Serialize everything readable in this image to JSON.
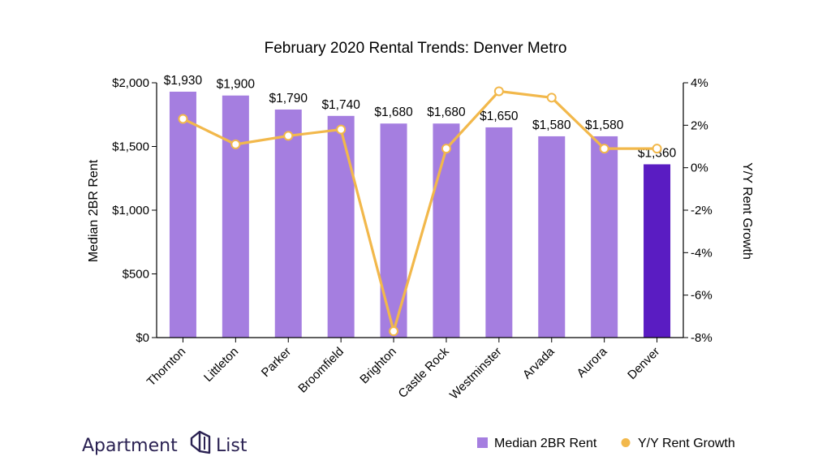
{
  "chart_data": {
    "type": "bar",
    "title": "February 2020 Rental Trends: Denver Metro",
    "categories": [
      "Thornton",
      "Littleton",
      "Parker",
      "Broomfield",
      "Brighton",
      "Castle Rock",
      "Westminster",
      "Arvada",
      "Aurora",
      "Denver"
    ],
    "series": [
      {
        "name": "Median 2BR Rent",
        "type": "bar",
        "axis": "left",
        "values": [
          1930,
          1900,
          1790,
          1740,
          1680,
          1680,
          1650,
          1580,
          1580,
          1360
        ],
        "labels": [
          "$1,930",
          "$1,900",
          "$1,790",
          "$1,740",
          "$1,680",
          "$1,680",
          "$1,650",
          "$1,580",
          "$1,580",
          "$1,360"
        ],
        "color": "#a57ee0",
        "highlight_color": "#5a1cc2",
        "highlight_category": "Denver"
      },
      {
        "name": "Y/Y Rent Growth",
        "type": "line",
        "axis": "right",
        "values": [
          2.3,
          1.1,
          1.5,
          1.8,
          -7.7,
          0.9,
          3.6,
          3.3,
          0.9,
          0.9
        ],
        "color": "#f2b84b"
      }
    ],
    "ylabel": "Median 2BR Rent",
    "ylim": [
      0,
      2000
    ],
    "yticks": [
      "$0",
      "$500",
      "$1,000",
      "$1,500",
      "$2,000"
    ],
    "y2label": "Y/Y Rent Growth",
    "y2lim": [
      -8,
      4
    ],
    "y2ticks": [
      "-8%",
      "-6%",
      "-4%",
      "-2%",
      "0%",
      "2%",
      "4%"
    ],
    "grid": false,
    "legend_position": "bottom-right"
  },
  "brand": {
    "name_left": "Apartment",
    "name_right": "List"
  },
  "legend": {
    "bar_label": "Median 2BR Rent",
    "line_label": "Y/Y Rent Growth"
  }
}
